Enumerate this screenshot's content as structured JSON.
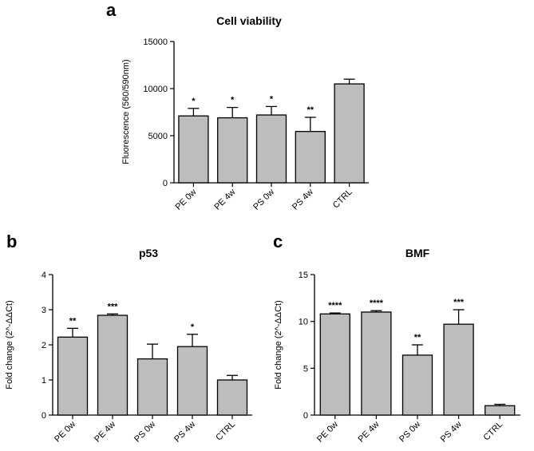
{
  "chart_data": [
    {
      "panel": "a",
      "type": "bar",
      "title": "Cell viability",
      "ylabel": "Fluorescence (560/590nm)",
      "xlabel": "",
      "ylim": [
        0,
        15000
      ],
      "yticks": [
        0,
        5000,
        10000,
        15000
      ],
      "categories": [
        "PE 0w",
        "PE 4w",
        "PS 0w",
        "PS 4w",
        "CTRL"
      ],
      "values": [
        7100,
        6900,
        7200,
        5450,
        10500
      ],
      "errors": [
        800,
        1100,
        900,
        1500,
        500
      ],
      "significance": [
        "*",
        "*",
        "*",
        "**",
        ""
      ]
    },
    {
      "panel": "b",
      "type": "bar",
      "title": "p53",
      "ylabel": "Fold change (2^-ΔΔCt)",
      "xlabel": "",
      "ylim": [
        0,
        4
      ],
      "yticks": [
        0,
        1,
        2,
        3,
        4
      ],
      "categories": [
        "PE 0w",
        "PE 4w",
        "PS 0w",
        "PS 4w",
        "CTRL"
      ],
      "values": [
        2.22,
        2.84,
        1.6,
        1.95,
        1.0
      ],
      "errors": [
        0.25,
        0.04,
        0.42,
        0.35,
        0.13
      ],
      "significance": [
        "**",
        "***",
        "",
        "*",
        ""
      ]
    },
    {
      "panel": "c",
      "type": "bar",
      "title": "BMF",
      "ylabel": "Fold change (2^-ΔΔCt)",
      "xlabel": "",
      "ylim": [
        0,
        15
      ],
      "yticks": [
        0,
        5,
        10,
        15
      ],
      "categories": [
        "PE 0w",
        "PE 4w",
        "PS 0w",
        "PS 4w",
        "CTRL"
      ],
      "values": [
        10.8,
        11.0,
        6.4,
        9.7,
        1.0
      ],
      "errors": [
        0.1,
        0.15,
        1.1,
        1.55,
        0.15
      ],
      "significance": [
        "****",
        "****",
        "**",
        "***",
        ""
      ]
    }
  ],
  "colors": {
    "bar_fill": "#bdbdbd",
    "bar_stroke": "#000000",
    "axis": "#000000"
  }
}
